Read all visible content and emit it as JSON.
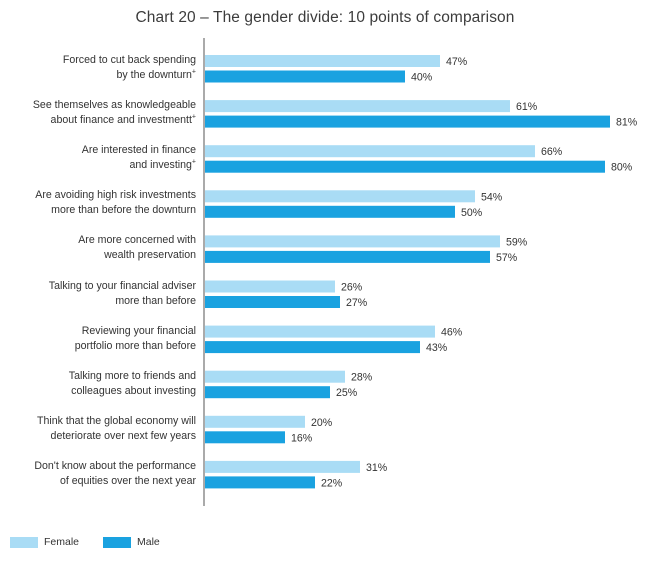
{
  "chart_data": {
    "type": "bar",
    "orientation": "horizontal",
    "title": "Chart 20 – The gender divide: 10 points of comparison",
    "categories": [
      {
        "lines": [
          "Forced to cut back spending",
          "by the downturn"
        ],
        "mark_line": 1,
        "mark": "+"
      },
      {
        "lines": [
          "See themselves as knowledgeable",
          "about finance and investmentt"
        ],
        "mark_line": 1,
        "mark": "+"
      },
      {
        "lines": [
          "Are interested in finance",
          "and investing"
        ],
        "mark_line": 1,
        "mark": "+"
      },
      {
        "lines": [
          "Are avoiding high risk investments",
          "more than before the downturn"
        ],
        "mark_line": null,
        "mark": ""
      },
      {
        "lines": [
          "Are more concerned with",
          "wealth preservation"
        ],
        "mark_line": null,
        "mark": ""
      },
      {
        "lines": [
          "Talking to your financial adviser",
          "more than before"
        ],
        "mark_line": null,
        "mark": ""
      },
      {
        "lines": [
          "Reviewing your financial",
          "portfolio more than before"
        ],
        "mark_line": null,
        "mark": ""
      },
      {
        "lines": [
          "Talking more to friends and",
          "colleagues about investing"
        ],
        "mark_line": null,
        "mark": ""
      },
      {
        "lines": [
          "Think that the global economy will",
          "deteriorate over next few years"
        ],
        "mark_line": null,
        "mark": ""
      },
      {
        "lines": [
          "Don't know about the performance",
          "of equities over the next year"
        ],
        "mark_line": null,
        "mark": ""
      }
    ],
    "series": [
      {
        "name": "Female",
        "color": "#a9dcf5",
        "values": [
          47,
          61,
          66,
          54,
          59,
          26,
          46,
          28,
          20,
          31
        ]
      },
      {
        "name": "Male",
        "color": "#1aa2e0",
        "values": [
          40,
          81,
          80,
          50,
          57,
          27,
          43,
          25,
          16,
          22
        ]
      }
    ],
    "value_suffix": "%",
    "xlim": [
      0,
      85
    ],
    "grid": false,
    "legend_position": "bottom-left"
  }
}
